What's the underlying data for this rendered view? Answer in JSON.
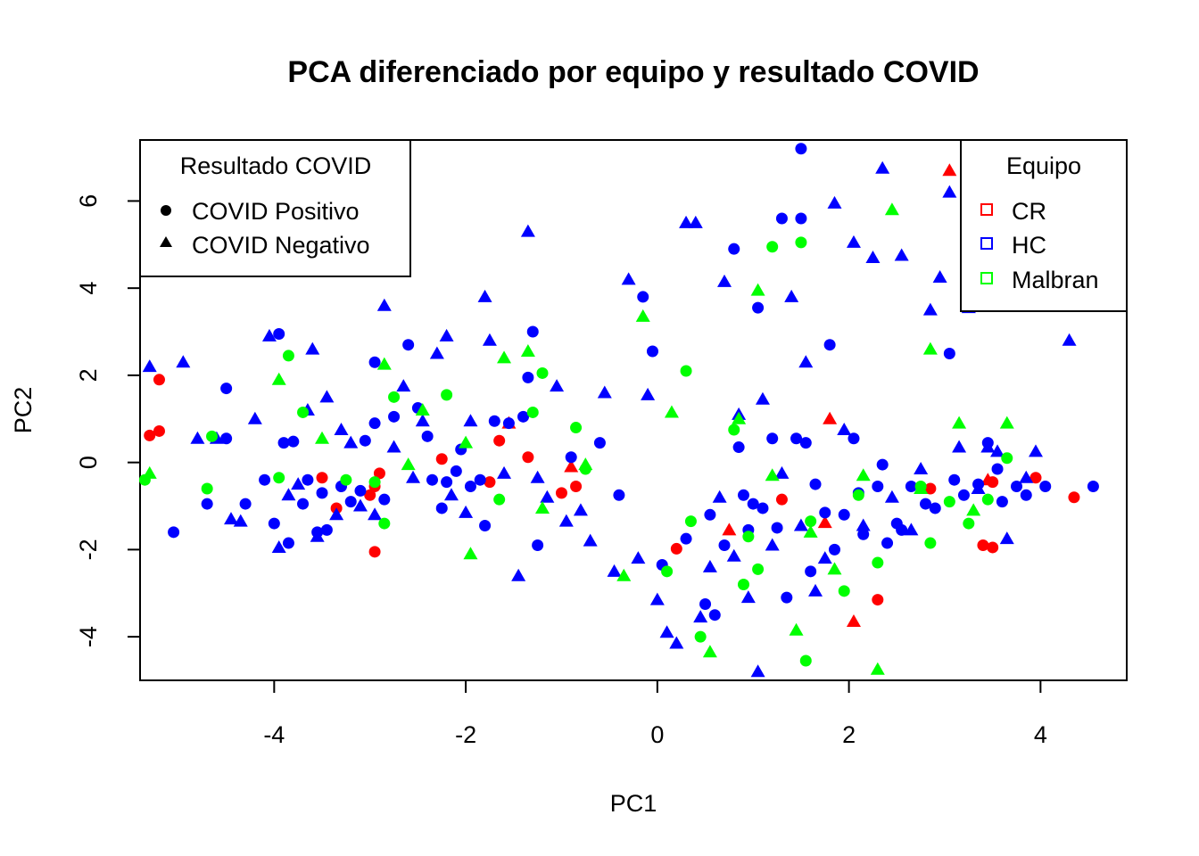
{
  "chart_data": {
    "type": "scatter",
    "title": "PCA diferenciado por equipo y resultado COVID",
    "xlabel": "PC1",
    "ylabel": "PC2",
    "xlim": [
      -5.4,
      4.9
    ],
    "ylim": [
      -5.0,
      7.4
    ],
    "xticks": [
      -4,
      -2,
      0,
      2,
      4
    ],
    "yticks": [
      -4,
      -2,
      0,
      2,
      4,
      6
    ],
    "grid": false,
    "legends": {
      "shape": {
        "title": "Resultado COVID",
        "placement": "top-left",
        "items": [
          {
            "label": "COVID Positivo",
            "marker": "circle"
          },
          {
            "label": "COVID Negativo",
            "marker": "triangle"
          }
        ]
      },
      "color": {
        "title": "Equipo",
        "placement": "top-right",
        "items": [
          {
            "label": "CR",
            "color": "#ff0000"
          },
          {
            "label": "HC",
            "color": "#0000ff"
          },
          {
            "label": "Malbran",
            "color": "#00ff00"
          }
        ]
      }
    },
    "series": [
      {
        "name": "CR",
        "color": "#ff0000",
        "positive": [
          [
            -5.2,
            1.9
          ],
          [
            -5.3,
            0.62
          ],
          [
            -5.2,
            0.72
          ],
          [
            -3.5,
            -0.35
          ],
          [
            -3.35,
            -1.05
          ],
          [
            -2.9,
            -0.25
          ],
          [
            -2.95,
            -0.55
          ],
          [
            -3.0,
            -0.75
          ],
          [
            -2.95,
            -2.05
          ],
          [
            -2.25,
            0.08
          ],
          [
            -1.75,
            -0.45
          ],
          [
            -1.65,
            0.5
          ],
          [
            -1.35,
            0.12
          ],
          [
            -1.0,
            -0.7
          ],
          [
            -0.85,
            -0.55
          ],
          [
            0.2,
            -1.98
          ],
          [
            1.3,
            -0.85
          ],
          [
            2.3,
            -3.15
          ],
          [
            2.85,
            -0.6
          ],
          [
            3.4,
            -1.9
          ],
          [
            3.5,
            -1.95
          ],
          [
            3.5,
            -0.45
          ],
          [
            3.95,
            -0.35
          ],
          [
            4.35,
            -0.8
          ]
        ],
        "negative": [
          [
            -1.55,
            0.9
          ],
          [
            -0.9,
            -0.1
          ],
          [
            0.75,
            -1.55
          ],
          [
            1.8,
            1.0
          ],
          [
            1.75,
            -1.38
          ],
          [
            2.05,
            -3.65
          ],
          [
            3.05,
            6.7
          ],
          [
            3.45,
            -0.4
          ]
        ]
      },
      {
        "name": "HC",
        "color": "#0000ff",
        "positive": [
          [
            -5.05,
            -1.6
          ],
          [
            -4.7,
            -0.95
          ],
          [
            -4.5,
            0.55
          ],
          [
            -4.5,
            1.7
          ],
          [
            -4.3,
            -0.95
          ],
          [
            -4.1,
            -0.4
          ],
          [
            -4.0,
            -1.4
          ],
          [
            -3.95,
            2.95
          ],
          [
            -3.9,
            0.45
          ],
          [
            -3.85,
            -1.85
          ],
          [
            -3.8,
            0.48
          ],
          [
            -3.7,
            -0.95
          ],
          [
            -3.65,
            -0.4
          ],
          [
            -3.55,
            -1.6
          ],
          [
            -3.5,
            -0.7
          ],
          [
            -3.45,
            -1.55
          ],
          [
            -3.3,
            -0.55
          ],
          [
            -3.2,
            -0.9
          ],
          [
            -3.1,
            -0.65
          ],
          [
            -3.05,
            0.5
          ],
          [
            -2.95,
            0.9
          ],
          [
            -2.95,
            2.3
          ],
          [
            -2.85,
            -0.85
          ],
          [
            -2.75,
            1.05
          ],
          [
            -2.6,
            2.7
          ],
          [
            -2.5,
            1.25
          ],
          [
            -2.4,
            0.6
          ],
          [
            -2.35,
            -0.4
          ],
          [
            -2.25,
            -1.05
          ],
          [
            -2.2,
            -0.45
          ],
          [
            -2.1,
            -0.2
          ],
          [
            -2.05,
            0.3
          ],
          [
            -1.95,
            -0.55
          ],
          [
            -1.85,
            -0.4
          ],
          [
            -1.8,
            -1.45
          ],
          [
            -1.7,
            0.95
          ],
          [
            -1.55,
            0.9
          ],
          [
            -1.4,
            1.05
          ],
          [
            -1.35,
            1.95
          ],
          [
            -1.3,
            3.0
          ],
          [
            -1.25,
            -1.9
          ],
          [
            -0.9,
            0.12
          ],
          [
            -0.6,
            0.45
          ],
          [
            -0.4,
            -0.75
          ],
          [
            -0.15,
            3.8
          ],
          [
            -0.05,
            2.55
          ],
          [
            0.05,
            -2.35
          ],
          [
            0.3,
            -1.75
          ],
          [
            0.5,
            -3.25
          ],
          [
            0.55,
            -1.2
          ],
          [
            0.6,
            -3.5
          ],
          [
            0.7,
            -1.9
          ],
          [
            0.8,
            4.9
          ],
          [
            0.85,
            0.35
          ],
          [
            0.9,
            -0.75
          ],
          [
            0.95,
            -1.55
          ],
          [
            1.0,
            -0.95
          ],
          [
            1.05,
            3.55
          ],
          [
            1.1,
            -1.05
          ],
          [
            1.2,
            0.55
          ],
          [
            1.25,
            -1.5
          ],
          [
            1.3,
            5.6
          ],
          [
            1.35,
            -3.1
          ],
          [
            1.45,
            0.55
          ],
          [
            1.5,
            5.6
          ],
          [
            1.5,
            7.2
          ],
          [
            1.55,
            0.45
          ],
          [
            1.6,
            -2.5
          ],
          [
            1.65,
            -0.5
          ],
          [
            1.75,
            -1.15
          ],
          [
            1.8,
            2.7
          ],
          [
            1.85,
            -2.0
          ],
          [
            1.95,
            -1.2
          ],
          [
            2.05,
            0.55
          ],
          [
            2.1,
            -0.7
          ],
          [
            2.15,
            -1.65
          ],
          [
            2.3,
            -0.55
          ],
          [
            2.35,
            -0.05
          ],
          [
            2.4,
            -1.85
          ],
          [
            2.5,
            -1.4
          ],
          [
            2.55,
            -1.55
          ],
          [
            2.65,
            -0.55
          ],
          [
            2.8,
            -0.95
          ],
          [
            2.9,
            -1.05
          ],
          [
            3.05,
            2.5
          ],
          [
            3.1,
            -0.4
          ],
          [
            3.2,
            -0.75
          ],
          [
            3.35,
            -0.5
          ],
          [
            3.45,
            0.45
          ],
          [
            3.55,
            -0.15
          ],
          [
            3.6,
            -0.9
          ],
          [
            3.75,
            -0.55
          ],
          [
            3.85,
            -0.75
          ],
          [
            4.05,
            -0.55
          ],
          [
            4.55,
            -0.55
          ]
        ],
        "negative": [
          [
            -5.3,
            2.2
          ],
          [
            -4.95,
            2.3
          ],
          [
            -4.8,
            0.55
          ],
          [
            -4.6,
            0.55
          ],
          [
            -4.45,
            -1.3
          ],
          [
            -4.35,
            -1.35
          ],
          [
            -4.2,
            1.0
          ],
          [
            -4.05,
            2.9
          ],
          [
            -3.95,
            -1.95
          ],
          [
            -3.85,
            -0.75
          ],
          [
            -3.75,
            -0.5
          ],
          [
            -3.65,
            1.2
          ],
          [
            -3.6,
            2.6
          ],
          [
            -3.55,
            -1.7
          ],
          [
            -3.45,
            1.5
          ],
          [
            -3.35,
            -1.2
          ],
          [
            -3.3,
            0.75
          ],
          [
            -3.2,
            0.45
          ],
          [
            -3.1,
            -1.0
          ],
          [
            -2.95,
            -1.2
          ],
          [
            -2.85,
            3.6
          ],
          [
            -2.75,
            0.35
          ],
          [
            -2.65,
            1.75
          ],
          [
            -2.55,
            -0.35
          ],
          [
            -2.45,
            0.95
          ],
          [
            -2.3,
            2.5
          ],
          [
            -2.2,
            2.9
          ],
          [
            -2.15,
            -0.75
          ],
          [
            -2.0,
            -1.15
          ],
          [
            -1.95,
            0.95
          ],
          [
            -1.8,
            3.8
          ],
          [
            -1.75,
            2.8
          ],
          [
            -1.6,
            -0.25
          ],
          [
            -1.45,
            -2.6
          ],
          [
            -1.35,
            5.3
          ],
          [
            -1.25,
            -0.35
          ],
          [
            -1.15,
            -0.8
          ],
          [
            -1.05,
            1.75
          ],
          [
            -0.95,
            -1.35
          ],
          [
            -0.8,
            -1.1
          ],
          [
            -0.7,
            -1.8
          ],
          [
            -0.55,
            1.6
          ],
          [
            -0.45,
            -2.5
          ],
          [
            -0.3,
            4.2
          ],
          [
            -0.2,
            -2.2
          ],
          [
            -0.1,
            1.55
          ],
          [
            0.0,
            -3.15
          ],
          [
            0.1,
            -3.9
          ],
          [
            0.2,
            -4.15
          ],
          [
            0.3,
            5.5
          ],
          [
            0.4,
            5.5
          ],
          [
            0.45,
            -3.55
          ],
          [
            0.55,
            -2.4
          ],
          [
            0.65,
            -0.8
          ],
          [
            0.7,
            4.15
          ],
          [
            0.8,
            -2.15
          ],
          [
            0.85,
            1.1
          ],
          [
            0.95,
            -3.1
          ],
          [
            1.05,
            -4.8
          ],
          [
            1.1,
            1.45
          ],
          [
            1.2,
            -1.9
          ],
          [
            1.3,
            -0.25
          ],
          [
            1.4,
            3.8
          ],
          [
            1.5,
            -1.45
          ],
          [
            1.55,
            2.3
          ],
          [
            1.65,
            -2.95
          ],
          [
            1.75,
            -2.2
          ],
          [
            1.85,
            5.95
          ],
          [
            1.95,
            0.75
          ],
          [
            2.05,
            5.05
          ],
          [
            2.15,
            -1.45
          ],
          [
            2.25,
            4.7
          ],
          [
            2.35,
            6.75
          ],
          [
            2.45,
            -0.8
          ],
          [
            2.55,
            4.75
          ],
          [
            2.65,
            -1.55
          ],
          [
            2.75,
            -0.15
          ],
          [
            2.85,
            3.5
          ],
          [
            2.95,
            4.25
          ],
          [
            3.05,
            6.2
          ],
          [
            3.15,
            0.35
          ],
          [
            3.25,
            3.55
          ],
          [
            3.35,
            -0.6
          ],
          [
            3.45,
            0.35
          ],
          [
            3.55,
            0.25
          ],
          [
            3.65,
            -1.75
          ],
          [
            3.85,
            -0.35
          ],
          [
            3.95,
            0.25
          ],
          [
            4.3,
            2.8
          ]
        ]
      },
      {
        "name": "Malbran",
        "color": "#00ff00",
        "positive": [
          [
            -5.35,
            -0.4
          ],
          [
            -4.7,
            -0.6
          ],
          [
            -4.65,
            0.6
          ],
          [
            -3.85,
            2.45
          ],
          [
            -3.95,
            -0.35
          ],
          [
            -3.7,
            1.15
          ],
          [
            -3.25,
            -0.4
          ],
          [
            -2.95,
            -0.45
          ],
          [
            -2.85,
            -1.4
          ],
          [
            -2.75,
            1.5
          ],
          [
            -2.2,
            1.55
          ],
          [
            -1.65,
            -0.85
          ],
          [
            -1.3,
            1.15
          ],
          [
            -1.2,
            2.05
          ],
          [
            -0.85,
            0.8
          ],
          [
            -0.75,
            -0.15
          ],
          [
            0.1,
            -2.5
          ],
          [
            0.3,
            2.1
          ],
          [
            0.35,
            -1.35
          ],
          [
            0.45,
            -4.0
          ],
          [
            0.8,
            0.75
          ],
          [
            0.9,
            -2.8
          ],
          [
            0.95,
            -1.7
          ],
          [
            1.05,
            -2.45
          ],
          [
            1.2,
            4.95
          ],
          [
            1.5,
            5.05
          ],
          [
            1.6,
            -1.35
          ],
          [
            1.55,
            -4.55
          ],
          [
            1.95,
            -2.95
          ],
          [
            2.1,
            -0.75
          ],
          [
            2.3,
            -2.3
          ],
          [
            2.75,
            -0.55
          ],
          [
            2.85,
            -1.85
          ],
          [
            3.05,
            -0.9
          ],
          [
            3.25,
            -1.4
          ],
          [
            3.45,
            -0.85
          ],
          [
            3.65,
            0.1
          ]
        ],
        "negative": [
          [
            -5.3,
            -0.25
          ],
          [
            -3.95,
            1.9
          ],
          [
            -3.5,
            0.55
          ],
          [
            -2.85,
            2.25
          ],
          [
            -2.6,
            -0.05
          ],
          [
            -2.45,
            1.2
          ],
          [
            -2.0,
            0.45
          ],
          [
            -1.95,
            -2.1
          ],
          [
            -1.6,
            2.4
          ],
          [
            -1.35,
            2.55
          ],
          [
            -1.2,
            -1.05
          ],
          [
            -0.75,
            -0.05
          ],
          [
            -0.35,
            -2.6
          ],
          [
            -0.15,
            3.35
          ],
          [
            0.15,
            1.15
          ],
          [
            0.55,
            -4.35
          ],
          [
            0.85,
            1.0
          ],
          [
            1.05,
            3.95
          ],
          [
            1.2,
            -0.3
          ],
          [
            1.45,
            -3.85
          ],
          [
            1.6,
            -1.6
          ],
          [
            1.85,
            -2.45
          ],
          [
            2.15,
            -0.3
          ],
          [
            2.3,
            -4.75
          ],
          [
            2.45,
            5.8
          ],
          [
            2.75,
            -0.6
          ],
          [
            2.85,
            2.6
          ],
          [
            3.15,
            0.9
          ],
          [
            3.3,
            -1.1
          ],
          [
            3.65,
            0.9
          ]
        ]
      }
    ]
  }
}
